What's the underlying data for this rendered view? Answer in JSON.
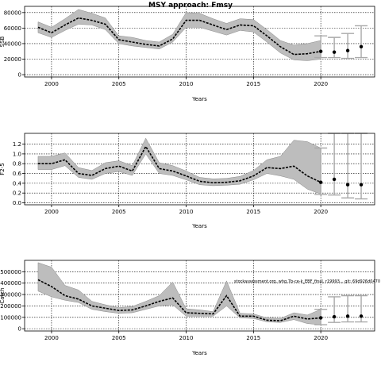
{
  "figure": {
    "title": "MSY approach: Fmsy",
    "note": "stockassessment.org, whg.7b-ce-k_EBF_final, r19993... git: 69d926d0470"
  },
  "chart_data": [
    {
      "type": "line",
      "name": "ssb",
      "ylabel": "SSB",
      "xlabel": "Years",
      "xlim": [
        1998,
        2024
      ],
      "ylim": [
        -3000,
        88000
      ],
      "grid": true,
      "xticks": [
        2000,
        2005,
        2010,
        2015,
        2020
      ],
      "yticks": [
        0,
        20000,
        40000,
        60000,
        80000
      ],
      "ytick_labels": [
        "0",
        "20000",
        "40000",
        "60000",
        "80000"
      ],
      "years": [
        1999,
        2000,
        2001,
        2002,
        2003,
        2004,
        2005,
        2006,
        2007,
        2008,
        2009,
        2010,
        2011,
        2012,
        2013,
        2014,
        2015,
        2016,
        2017,
        2018,
        2019,
        2020
      ],
      "mean": [
        61000,
        54000,
        64000,
        73000,
        70000,
        65000,
        45000,
        42000,
        39000,
        37000,
        46000,
        70000,
        70000,
        64000,
        58000,
        64000,
        63000,
        50000,
        36000,
        26000,
        27000,
        30000
      ],
      "lower": [
        54000,
        48000,
        57000,
        65000,
        64000,
        58000,
        40000,
        37000,
        35000,
        33000,
        42000,
        61000,
        61000,
        56000,
        51000,
        57000,
        55000,
        42000,
        28000,
        19000,
        18000,
        20000
      ],
      "upper": [
        68000,
        61000,
        72000,
        84000,
        79000,
        73000,
        50000,
        48000,
        44000,
        42000,
        52000,
        80000,
        79000,
        72000,
        66000,
        72000,
        71000,
        58000,
        44000,
        38000,
        40000,
        44000
      ],
      "forecast": {
        "years": [
          2020,
          2021,
          2022,
          2023
        ],
        "mid": [
          30000,
          29000,
          31000,
          36000
        ],
        "low": [
          22000,
          22000,
          21000,
          22000
        ],
        "high": [
          50000,
          48000,
          53000,
          63000
        ]
      }
    },
    {
      "type": "line",
      "name": "fbar",
      "ylabel": "F2-5",
      "xlabel": "Years",
      "xlim": [
        1998,
        2024
      ],
      "ylim": [
        -0.04,
        1.42
      ],
      "grid": true,
      "xticks": [
        2000,
        2005,
        2010,
        2015,
        2020
      ],
      "yticks": [
        0.0,
        0.2,
        0.4,
        0.6,
        0.8,
        1.0,
        1.2
      ],
      "ytick_labels": [
        "0.0",
        "0.2",
        "0.4",
        "0.6",
        "0.8",
        "1.0",
        "1.2"
      ],
      "years": [
        1999,
        2000,
        2001,
        2002,
        2003,
        2004,
        2005,
        2006,
        2007,
        2008,
        2009,
        2010,
        2011,
        2012,
        2013,
        2014,
        2015,
        2016,
        2017,
        2018,
        2019,
        2020
      ],
      "mean": [
        0.8,
        0.8,
        0.88,
        0.6,
        0.56,
        0.7,
        0.75,
        0.65,
        1.15,
        0.7,
        0.65,
        0.55,
        0.44,
        0.41,
        0.42,
        0.45,
        0.55,
        0.72,
        0.7,
        0.75,
        0.55,
        0.42
      ],
      "lower": [
        0.68,
        0.68,
        0.76,
        0.52,
        0.48,
        0.6,
        0.64,
        0.56,
        1.0,
        0.6,
        0.56,
        0.47,
        0.37,
        0.35,
        0.36,
        0.38,
        0.47,
        0.6,
        0.55,
        0.48,
        0.28,
        0.18
      ],
      "upper": [
        0.95,
        0.95,
        1.02,
        0.72,
        0.66,
        0.82,
        0.86,
        0.76,
        1.32,
        0.82,
        0.76,
        0.65,
        0.52,
        0.49,
        0.5,
        0.54,
        0.66,
        0.88,
        0.95,
        1.28,
        1.25,
        1.12
      ],
      "forecast": {
        "years": [
          2020,
          2021,
          2022,
          2023
        ],
        "mid": [
          0.42,
          0.48,
          0.37,
          0.37
        ],
        "low": [
          0.17,
          0.16,
          0.1,
          0.08
        ],
        "high": [
          1.12,
          1.42,
          1.42,
          1.42
        ]
      }
    },
    {
      "type": "line",
      "name": "catch",
      "ylabel": "Catch",
      "xlabel": "Years",
      "xlim": [
        1998,
        2024
      ],
      "ylim": [
        -20000,
        600000
      ],
      "grid": true,
      "xticks": [
        2000,
        2005,
        2010,
        2015,
        2020
      ],
      "yticks": [
        0,
        100000,
        200000,
        300000,
        400000,
        500000
      ],
      "ytick_labels": [
        "0",
        "100000",
        "200000",
        "300000",
        "400000",
        "500000"
      ],
      "years": [
        1999,
        2000,
        2001,
        2002,
        2003,
        2004,
        2005,
        2006,
        2007,
        2008,
        2009,
        2010,
        2011,
        2012,
        2013,
        2014,
        2015,
        2016,
        2017,
        2018,
        2019,
        2020
      ],
      "mean": [
        430000,
        370000,
        290000,
        260000,
        200000,
        180000,
        160000,
        165000,
        200000,
        240000,
        270000,
        140000,
        135000,
        130000,
        290000,
        110000,
        110000,
        75000,
        70000,
        110000,
        85000,
        95000
      ],
      "lower": [
        330000,
        280000,
        250000,
        230000,
        170000,
        150000,
        135000,
        140000,
        170000,
        200000,
        210000,
        110000,
        110000,
        110000,
        200000,
        95000,
        90000,
        60000,
        55000,
        80000,
        45000,
        35000
      ],
      "upper": [
        580000,
        540000,
        380000,
        340000,
        240000,
        210000,
        185000,
        195000,
        240000,
        290000,
        410000,
        175000,
        165000,
        150000,
        420000,
        135000,
        130000,
        95000,
        90000,
        140000,
        120000,
        170000
      ],
      "forecast": {
        "years": [
          2020,
          2021,
          2022,
          2023
        ],
        "mid": [
          95000,
          105000,
          110000,
          110000
        ],
        "low": [
          35000,
          55000,
          60000,
          60000
        ],
        "high": [
          170000,
          280000,
          290000,
          290000
        ]
      }
    }
  ]
}
